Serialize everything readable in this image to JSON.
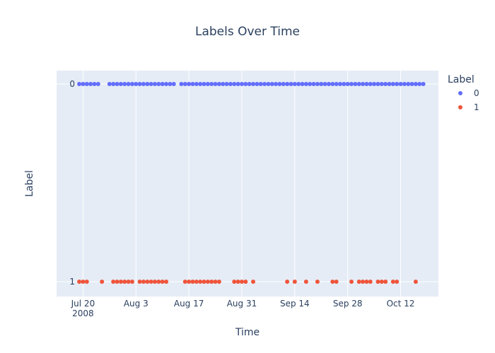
{
  "chart_data": {
    "type": "scatter",
    "title": "Labels Over Time",
    "xlabel": "Time",
    "ylabel": "Label",
    "x_range": [
      "2008-07-13",
      "2008-10-22"
    ],
    "y_categories": [
      "0",
      "1"
    ],
    "x_ticks": [
      {
        "date": "2008-07-20",
        "label": "Jul 20",
        "sublabel": "2008"
      },
      {
        "date": "2008-08-03",
        "label": "Aug 3"
      },
      {
        "date": "2008-08-17",
        "label": "Aug 17"
      },
      {
        "date": "2008-08-31",
        "label": "Aug 31"
      },
      {
        "date": "2008-09-14",
        "label": "Sep 14"
      },
      {
        "date": "2008-09-28",
        "label": "Sep 28"
      },
      {
        "date": "2008-10-12",
        "label": "Oct 12"
      }
    ],
    "legend": {
      "title": "Label",
      "placement": "top-right"
    },
    "grid": true,
    "series": [
      {
        "name": "0",
        "color": "#636efa",
        "y": "0",
        "x": [
          "2008-07-19",
          "2008-07-20",
          "2008-07-21",
          "2008-07-22",
          "2008-07-23",
          "2008-07-24",
          "2008-07-27",
          "2008-07-28",
          "2008-07-29",
          "2008-07-30",
          "2008-07-31",
          "2008-08-01",
          "2008-08-02",
          "2008-08-03",
          "2008-08-04",
          "2008-08-05",
          "2008-08-06",
          "2008-08-07",
          "2008-08-08",
          "2008-08-09",
          "2008-08-10",
          "2008-08-11",
          "2008-08-12",
          "2008-08-13",
          "2008-08-15",
          "2008-08-16",
          "2008-08-17",
          "2008-08-18",
          "2008-08-19",
          "2008-08-20",
          "2008-08-21",
          "2008-08-22",
          "2008-08-23",
          "2008-08-24",
          "2008-08-25",
          "2008-08-26",
          "2008-08-27",
          "2008-08-28",
          "2008-08-29",
          "2008-08-30",
          "2008-08-31",
          "2008-09-01",
          "2008-09-02",
          "2008-09-03",
          "2008-09-04",
          "2008-09-05",
          "2008-09-06",
          "2008-09-07",
          "2008-09-08",
          "2008-09-09",
          "2008-09-10",
          "2008-09-11",
          "2008-09-12",
          "2008-09-13",
          "2008-09-14",
          "2008-09-15",
          "2008-09-16",
          "2008-09-17",
          "2008-09-18",
          "2008-09-19",
          "2008-09-20",
          "2008-09-21",
          "2008-09-22",
          "2008-09-23",
          "2008-09-24",
          "2008-09-25",
          "2008-09-26",
          "2008-09-27",
          "2008-09-28",
          "2008-09-29",
          "2008-09-30",
          "2008-10-01",
          "2008-10-02",
          "2008-10-03",
          "2008-10-04",
          "2008-10-05",
          "2008-10-06",
          "2008-10-07",
          "2008-10-08",
          "2008-10-09",
          "2008-10-10",
          "2008-10-11",
          "2008-10-12",
          "2008-10-13",
          "2008-10-14",
          "2008-10-15",
          "2008-10-16",
          "2008-10-17",
          "2008-10-18"
        ]
      },
      {
        "name": "1",
        "color": "#ef553b",
        "y": "1",
        "x": [
          "2008-07-19",
          "2008-07-20",
          "2008-07-21",
          "2008-07-25",
          "2008-07-28",
          "2008-07-29",
          "2008-07-30",
          "2008-07-31",
          "2008-08-01",
          "2008-08-02",
          "2008-08-04",
          "2008-08-05",
          "2008-08-06",
          "2008-08-07",
          "2008-08-08",
          "2008-08-09",
          "2008-08-10",
          "2008-08-11",
          "2008-08-16",
          "2008-08-17",
          "2008-08-18",
          "2008-08-19",
          "2008-08-20",
          "2008-08-21",
          "2008-08-22",
          "2008-08-23",
          "2008-08-24",
          "2008-08-25",
          "2008-08-29",
          "2008-08-30",
          "2008-08-31",
          "2008-09-01",
          "2008-09-03",
          "2008-09-12",
          "2008-09-14",
          "2008-09-17",
          "2008-09-20",
          "2008-09-24",
          "2008-09-25",
          "2008-09-29",
          "2008-10-01",
          "2008-10-02",
          "2008-10-03",
          "2008-10-04",
          "2008-10-06",
          "2008-10-07",
          "2008-10-08",
          "2008-10-10",
          "2008-10-11",
          "2008-10-16"
        ]
      }
    ]
  }
}
